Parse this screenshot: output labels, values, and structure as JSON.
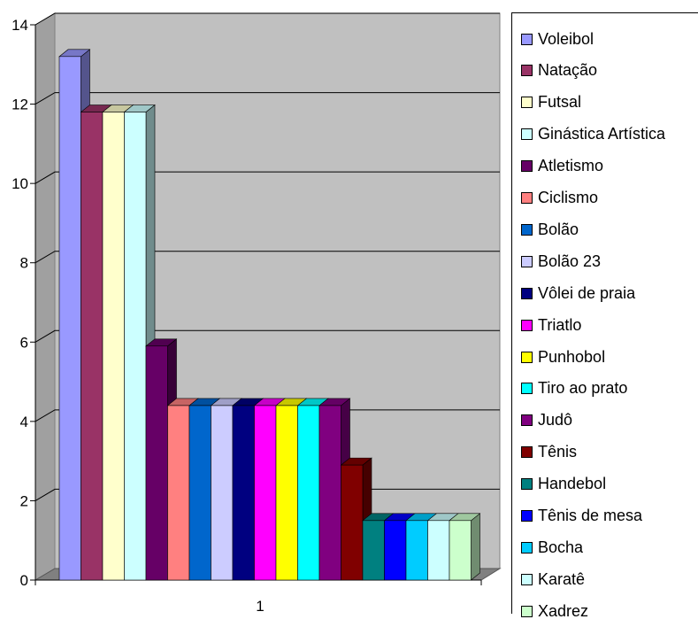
{
  "chart_data": {
    "type": "bar",
    "categories": [
      "1"
    ],
    "ylim": [
      0,
      14
    ],
    "yticks": [
      0,
      2,
      4,
      6,
      8,
      10,
      12,
      14
    ],
    "grid": true,
    "legend_placement": "right",
    "series": [
      {
        "name": "Voleibol",
        "value": 13.2,
        "color": "#9999ff"
      },
      {
        "name": "Natação",
        "value": 11.8,
        "color": "#993366"
      },
      {
        "name": "Futsal",
        "value": 11.8,
        "color": "#ffffcc"
      },
      {
        "name": "Ginástica Artística",
        "value": 11.8,
        "color": "#ccffff"
      },
      {
        "name": "Atletismo",
        "value": 5.9,
        "color": "#660066"
      },
      {
        "name": "Ciclismo",
        "value": 4.4,
        "color": "#ff8080"
      },
      {
        "name": "Bolão",
        "value": 4.4,
        "color": "#0066cc"
      },
      {
        "name": "Bolão 23",
        "value": 4.4,
        "color": "#ccccff"
      },
      {
        "name": "Vôlei de praia",
        "value": 4.4,
        "color": "#000080"
      },
      {
        "name": "Triatlo",
        "value": 4.4,
        "color": "#ff00ff"
      },
      {
        "name": "Punhobol",
        "value": 4.4,
        "color": "#ffff00"
      },
      {
        "name": "Tiro ao prato",
        "value": 4.4,
        "color": "#00ffff"
      },
      {
        "name": "Judô",
        "value": 4.4,
        "color": "#800080"
      },
      {
        "name": "Tênis",
        "value": 2.9,
        "color": "#800000"
      },
      {
        "name": "Handebol",
        "value": 1.5,
        "color": "#008080"
      },
      {
        "name": "Tênis de mesa",
        "value": 1.5,
        "color": "#0000ff"
      },
      {
        "name": "Bocha",
        "value": 1.5,
        "color": "#00ccff"
      },
      {
        "name": "Karatê",
        "value": 1.5,
        "color": "#ccffff"
      },
      {
        "name": "Xadrez",
        "value": 1.5,
        "color": "#ccffcc"
      }
    ]
  }
}
